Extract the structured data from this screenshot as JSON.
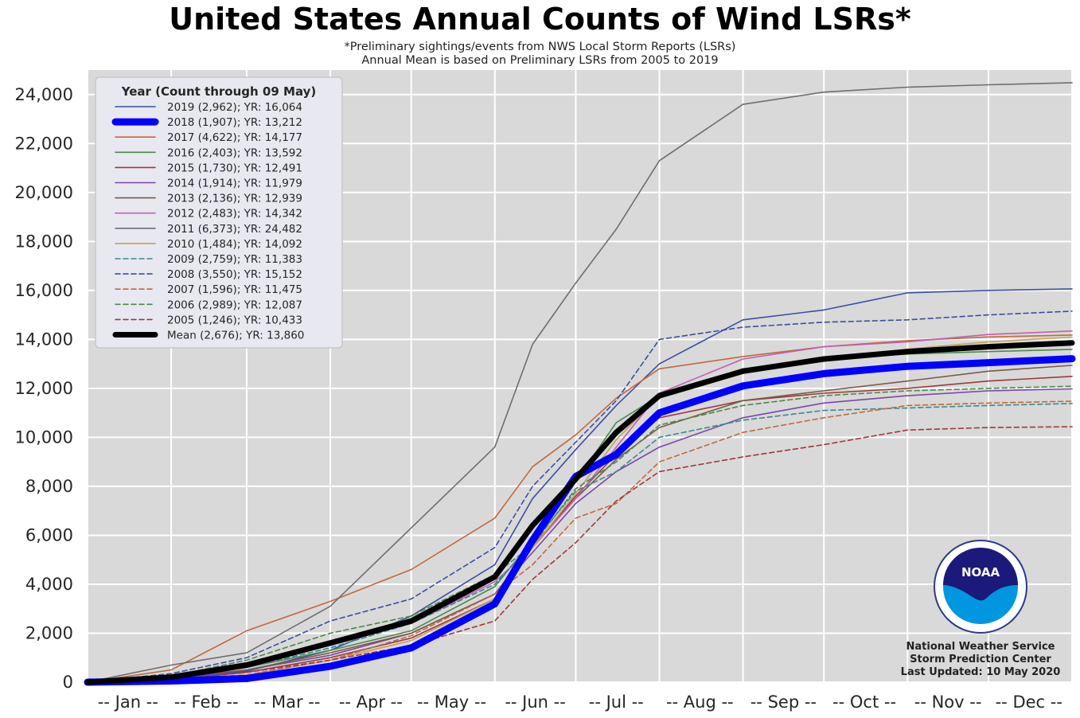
{
  "title": "United States Annual Counts of Wind LSRs*",
  "subtitle1": "*Preliminary sightings/events from NWS Local Storm Reports (LSRs)",
  "subtitle2": "Annual Mean is based on Preliminary LSRs from 2005 to 2019",
  "credit": {
    "line1": "National Weather Service",
    "line2": "Storm Prediction Center",
    "line3": "Last Updated: 10 May 2020"
  },
  "logo": {
    "icon": "noaa-logo",
    "text": "NOAA"
  },
  "colors": {
    "plot_bg": "#d9d9d9",
    "grid": "#ffffff",
    "legend_bg": "#e8e8f0"
  },
  "chart_data": {
    "type": "line",
    "x_unit": "day of year",
    "xlim": [
      1,
      366
    ],
    "ylim": [
      0,
      25000
    ],
    "y_ticks": [
      0,
      2000,
      4000,
      6000,
      8000,
      10000,
      12000,
      14000,
      16000,
      18000,
      20000,
      22000,
      24000
    ],
    "y_tick_labels": [
      "0",
      "2,000",
      "4,000",
      "6,000",
      "8,000",
      "10,000",
      "12,000",
      "14,000",
      "16,000",
      "18,000",
      "20,000",
      "22,000",
      "24,000"
    ],
    "x_tick_labels": [
      "-- Jan --",
      "-- Feb --",
      "-- Mar --",
      "-- Apr --",
      "-- May --",
      "-- Jun --",
      "-- Jul --",
      "-- Aug --",
      "-- Sep --",
      "-- Oct --",
      "-- Nov --",
      "-- Dec --"
    ],
    "x_tick_positions": [
      16,
      45,
      75,
      106,
      136,
      167,
      197,
      228,
      259,
      289,
      320,
      350
    ],
    "x_grid": [
      1,
      32,
      60,
      91,
      121,
      152,
      182,
      213,
      244,
      274,
      305,
      335,
      366
    ],
    "grid": true,
    "legend_title": "Year (Count through 09 May)",
    "legend_position": "upper-left",
    "x": [
      1,
      32,
      60,
      91,
      121,
      152,
      166,
      182,
      197,
      213,
      244,
      274,
      305,
      335,
      366
    ],
    "series": [
      {
        "name": "2019 (2,962); YR: 16,064",
        "color": "#3b4fa0",
        "dash": "solid",
        "width": 1.6,
        "values": [
          0,
          150,
          450,
          1300,
          2700,
          4800,
          7500,
          9500,
          11300,
          13000,
          14800,
          15200,
          15900,
          16000,
          16064
        ]
      },
      {
        "name": "2018 (1,907); YR: 13,212",
        "color": "#0000ff",
        "dash": "solid",
        "width": 9,
        "values": [
          0,
          50,
          150,
          650,
          1400,
          3200,
          5800,
          8400,
          9300,
          11000,
          12100,
          12600,
          12900,
          13050,
          13212
        ]
      },
      {
        "name": "2017 (4,622); YR: 14,177",
        "color": "#c2693c",
        "dash": "solid",
        "width": 1.6,
        "values": [
          0,
          500,
          2100,
          3300,
          4600,
          6700,
          8800,
          10100,
          11600,
          12800,
          13300,
          13700,
          13950,
          14100,
          14177
        ]
      },
      {
        "name": "2016 (2,403); YR: 13,592",
        "color": "#4a8a4a",
        "dash": "solid",
        "width": 1.6,
        "values": [
          0,
          200,
          600,
          1300,
          2100,
          3900,
          5800,
          8200,
          10600,
          11700,
          12800,
          13200,
          13400,
          13500,
          13592
        ]
      },
      {
        "name": "2015 (1,730); YR: 12,491",
        "color": "#9e3a3a",
        "dash": "solid",
        "width": 1.6,
        "values": [
          0,
          100,
          400,
          1000,
          1800,
          3400,
          5500,
          7600,
          9300,
          10800,
          11500,
          11800,
          12000,
          12300,
          12491
        ]
      },
      {
        "name": "2014 (1,914); YR: 11,979",
        "color": "#7d45a6",
        "dash": "solid",
        "width": 1.6,
        "values": [
          0,
          150,
          500,
          1100,
          2000,
          3600,
          5300,
          7300,
          8600,
          9600,
          10800,
          11400,
          11700,
          11900,
          11979
        ]
      },
      {
        "name": "2013 (2,136); YR: 12,939",
        "color": "#7a5a48",
        "dash": "solid",
        "width": 1.6,
        "values": [
          0,
          200,
          500,
          1200,
          2000,
          3600,
          5600,
          7500,
          9100,
          10400,
          11500,
          11900,
          12300,
          12700,
          12939
        ]
      },
      {
        "name": "2012 (2,483); YR: 14,342",
        "color": "#c060b0",
        "dash": "solid",
        "width": 1.6,
        "values": [
          0,
          300,
          800,
          1500,
          2400,
          4100,
          5500,
          7500,
          9600,
          11800,
          13200,
          13700,
          13900,
          14200,
          14342
        ]
      },
      {
        "name": "2011 (6,373); YR: 24,482",
        "color": "#6e6e6e",
        "dash": "solid",
        "width": 1.6,
        "values": [
          0,
          700,
          1200,
          3100,
          6300,
          9600,
          13800,
          16300,
          18500,
          21300,
          23600,
          24100,
          24300,
          24400,
          24482
        ]
      },
      {
        "name": "2010 (1,484); YR: 14,092",
        "color": "#c8a050",
        "dash": "solid",
        "width": 1.6,
        "values": [
          0,
          80,
          300,
          900,
          1700,
          3400,
          5500,
          7700,
          9900,
          11700,
          12700,
          13200,
          13600,
          13900,
          14092
        ]
      },
      {
        "name": "2009 (2,759); YR: 11,383",
        "color": "#3a8a8e",
        "dash": "dashed",
        "width": 1.6,
        "values": [
          0,
          200,
          600,
          1400,
          2400,
          4000,
          5700,
          7800,
          8600,
          10000,
          10700,
          11100,
          11200,
          11300,
          11383
        ]
      },
      {
        "name": "2008 (3,550); YR: 15,152",
        "color": "#3b4fa0",
        "dash": "dashed",
        "width": 1.6,
        "values": [
          0,
          350,
          1000,
          2500,
          3400,
          5500,
          8000,
          9800,
          11500,
          14000,
          14500,
          14700,
          14800,
          15000,
          15152
        ]
      },
      {
        "name": "2007 (1,596); YR: 11,475",
        "color": "#c2693c",
        "dash": "dashed",
        "width": 1.6,
        "values": [
          0,
          100,
          300,
          900,
          1900,
          3600,
          4800,
          6700,
          7300,
          9000,
          10200,
          10800,
          11300,
          11400,
          11475
        ]
      },
      {
        "name": "2006 (2,989); YR: 12,087",
        "color": "#4a8a4a",
        "dash": "dashed",
        "width": 1.6,
        "values": [
          0,
          250,
          900,
          2000,
          2700,
          4400,
          5600,
          7900,
          9000,
          10500,
          11300,
          11700,
          11900,
          12000,
          12087
        ]
      },
      {
        "name": "2005 (1,246); YR: 10,433",
        "color": "#9e3a3a",
        "dash": "dashed",
        "width": 1.6,
        "values": [
          0,
          100,
          400,
          900,
          1500,
          2500,
          4200,
          5700,
          7400,
          8600,
          9200,
          9700,
          10300,
          10400,
          10433
        ]
      },
      {
        "name": "Mean (2,676); YR: 13,860",
        "color": "#000000",
        "dash": "solid",
        "width": 7,
        "values": [
          0,
          200,
          700,
          1600,
          2500,
          4300,
          6400,
          8300,
          10200,
          11700,
          12700,
          13200,
          13500,
          13700,
          13860
        ]
      }
    ]
  }
}
